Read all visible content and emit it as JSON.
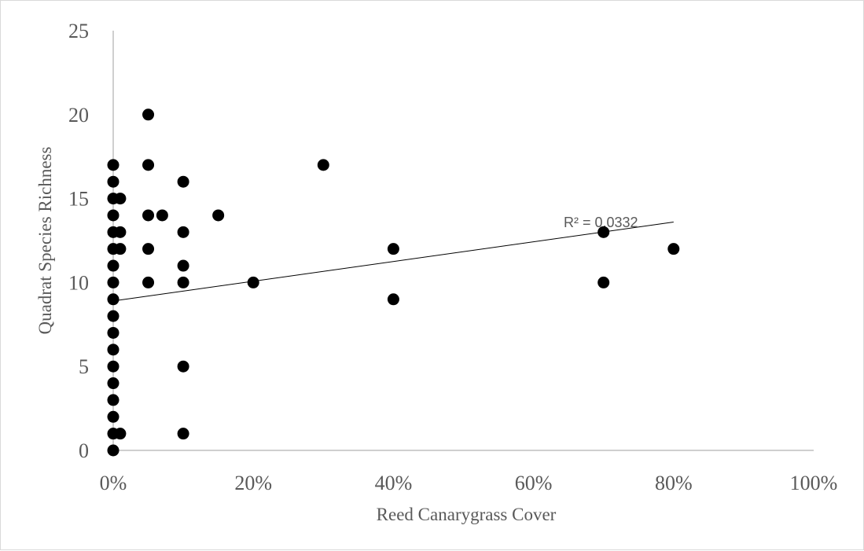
{
  "chart_data": {
    "type": "scatter",
    "xlabel": "Reed Canarygrass Cover",
    "ylabel": "Quadrat Species Richness",
    "xlim": [
      0,
      1
    ],
    "ylim": [
      0,
      25
    ],
    "x_ticks": [
      0,
      0.2,
      0.4,
      0.6,
      0.8,
      1.0
    ],
    "x_tick_labels": [
      "0%",
      "20%",
      "40%",
      "60%",
      "80%",
      "100%"
    ],
    "y_ticks": [
      0,
      5,
      10,
      15,
      20,
      25
    ],
    "y_tick_labels": [
      "0",
      "5",
      "10",
      "15",
      "20",
      "25"
    ],
    "grid": false,
    "marker_color": "#000000",
    "axis_color": "#bfbfbf",
    "points": [
      [
        0,
        0
      ],
      [
        0,
        1
      ],
      [
        0,
        2
      ],
      [
        0,
        3
      ],
      [
        0,
        4
      ],
      [
        0,
        5
      ],
      [
        0,
        6
      ],
      [
        0,
        7
      ],
      [
        0,
        8
      ],
      [
        0,
        9
      ],
      [
        0,
        10
      ],
      [
        0,
        11
      ],
      [
        0,
        12
      ],
      [
        0,
        13
      ],
      [
        0,
        14
      ],
      [
        0,
        15
      ],
      [
        0,
        16
      ],
      [
        0,
        17
      ],
      [
        0.01,
        1
      ],
      [
        0.01,
        12
      ],
      [
        0.01,
        13
      ],
      [
        0.01,
        15
      ],
      [
        0.05,
        10
      ],
      [
        0.05,
        12
      ],
      [
        0.05,
        14
      ],
      [
        0.05,
        17
      ],
      [
        0.05,
        20
      ],
      [
        0.07,
        14
      ],
      [
        0.1,
        1
      ],
      [
        0.1,
        5
      ],
      [
        0.1,
        10
      ],
      [
        0.1,
        11
      ],
      [
        0.1,
        13
      ],
      [
        0.1,
        16
      ],
      [
        0.15,
        14
      ],
      [
        0.2,
        10
      ],
      [
        0.3,
        17
      ],
      [
        0.4,
        9
      ],
      [
        0.4,
        12
      ],
      [
        0.7,
        10
      ],
      [
        0.7,
        13
      ],
      [
        0.8,
        12
      ]
    ],
    "trendline": {
      "type": "linear",
      "x_range": [
        0,
        0.8
      ],
      "y_at_start": 8.9,
      "y_at_end": 13.6,
      "label": "R² = 0.0332"
    }
  }
}
